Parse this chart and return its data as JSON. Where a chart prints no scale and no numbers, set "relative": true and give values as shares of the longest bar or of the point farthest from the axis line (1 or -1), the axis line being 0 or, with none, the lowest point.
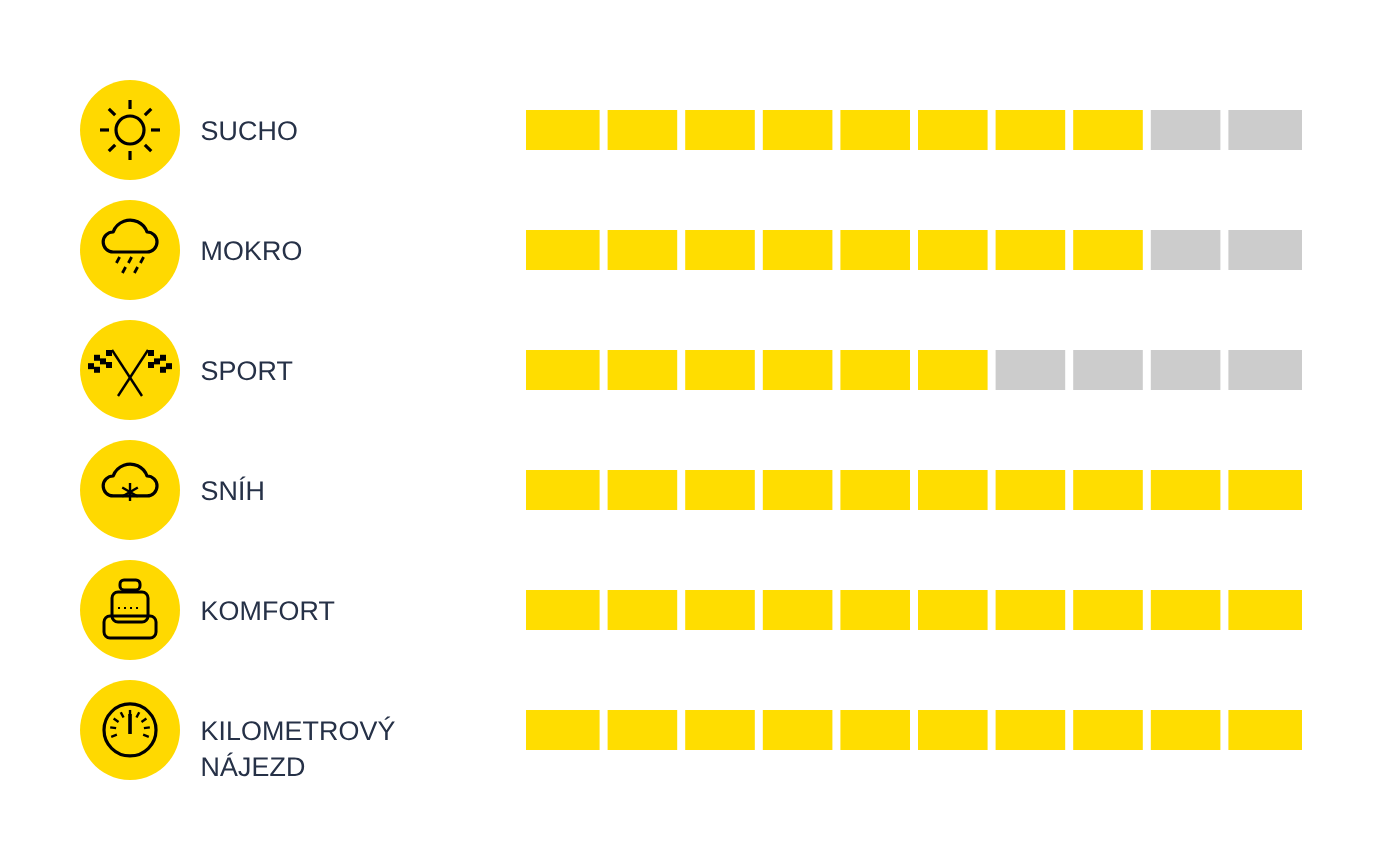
{
  "chart_data": {
    "type": "bar",
    "orientation": "horizontal",
    "stacked": true,
    "relative": true,
    "categories": [
      "SUCHO",
      "MOKRO",
      "SPORT",
      "SNÍH",
      "KOMFORT",
      "KILOMETROVÝ NÁJEZD"
    ],
    "series": [
      {
        "color": "#ffdd00",
        "values": [
          0.8,
          0.8,
          0.6,
          1,
          1,
          1
        ]
      },
      {
        "color": "#cccccc",
        "values": [
          0.2,
          0.2,
          0.4,
          0,
          0,
          0
        ]
      }
    ]
  }
}
